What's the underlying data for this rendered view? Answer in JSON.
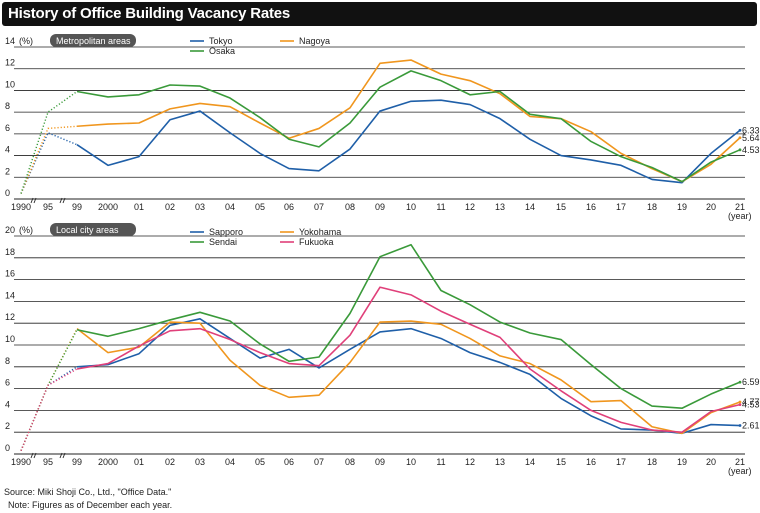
{
  "title": "History of Office Building Vacancy Rates",
  "source": "Source: Miki Shoji Co., Ltd., \"Office Data.\"",
  "note": "Note: Figures as of December each year.",
  "colors": {
    "Tokyo": "#1f5fa8",
    "Nagoya": "#f0961e",
    "Osaka": "#3a9a3a",
    "Sapporo": "#1f5fa8",
    "Yokohama": "#f0961e",
    "Sendai": "#3a9a3a",
    "Fukuoka": "#e0407a"
  },
  "chart_data": [
    {
      "type": "line",
      "panel_label": "Metropolitan areas",
      "unit_label": "(%)",
      "year_label": "(year)",
      "x_labels": [
        "1990",
        "95",
        "99",
        "2000",
        "01",
        "02",
        "03",
        "04",
        "05",
        "06",
        "07",
        "08",
        "09",
        "10",
        "11",
        "12",
        "13",
        "14",
        "15",
        "16",
        "17",
        "18",
        "19",
        "20",
        "21"
      ],
      "y_ticks": [
        0,
        2,
        4,
        6,
        8,
        10,
        12,
        14
      ],
      "ylim": [
        0,
        14
      ],
      "series": [
        {
          "name": "Tokyo",
          "values": [
            0.5,
            6.1,
            5.0,
            3.1,
            3.9,
            7.3,
            8.1,
            6.1,
            4.2,
            2.8,
            2.6,
            4.6,
            8.1,
            9.0,
            9.1,
            8.7,
            7.4,
            5.5,
            4.0,
            3.6,
            3.1,
            1.8,
            1.5,
            4.2,
            6.33
          ]
        },
        {
          "name": "Nagoya",
          "values": [
            0.5,
            6.5,
            6.7,
            6.9,
            7.0,
            8.3,
            8.8,
            8.5,
            7.0,
            5.6,
            6.5,
            8.4,
            12.5,
            12.8,
            11.5,
            10.9,
            9.7,
            7.6,
            7.4,
            6.2,
            4.2,
            2.8,
            1.6,
            3.2,
            5.64
          ]
        },
        {
          "name": "Osaka",
          "values": [
            0.5,
            8.0,
            9.9,
            9.4,
            9.6,
            10.5,
            10.4,
            9.3,
            7.5,
            5.5,
            4.8,
            7.0,
            10.3,
            11.8,
            10.9,
            9.6,
            9.9,
            7.8,
            7.4,
            5.3,
            3.9,
            2.9,
            1.6,
            3.4,
            4.53
          ]
        }
      ],
      "end_labels": [
        "6.33",
        "5.64",
        "4.53"
      ]
    },
    {
      "type": "line",
      "panel_label": "Local city areas",
      "unit_label": "(%)",
      "year_label": "(year)",
      "x_labels": [
        "1990",
        "95",
        "99",
        "2000",
        "01",
        "02",
        "03",
        "04",
        "05",
        "06",
        "07",
        "08",
        "09",
        "10",
        "11",
        "12",
        "13",
        "14",
        "15",
        "16",
        "17",
        "18",
        "19",
        "20",
        "21"
      ],
      "y_ticks": [
        0,
        2,
        4,
        6,
        8,
        10,
        12,
        14,
        16,
        18,
        20
      ],
      "ylim": [
        0,
        20
      ],
      "series": [
        {
          "name": "Sapporo",
          "values": [
            0.3,
            6.3,
            8.0,
            8.2,
            9.2,
            11.8,
            12.4,
            10.6,
            8.8,
            9.6,
            7.9,
            9.6,
            11.2,
            11.5,
            10.6,
            9.3,
            8.4,
            7.3,
            5.1,
            3.5,
            2.3,
            2.2,
            1.9,
            2.7,
            2.61
          ]
        },
        {
          "name": "Yokohama",
          "values": [
            0.3,
            6.3,
            11.5,
            9.3,
            9.8,
            12.1,
            12.0,
            8.6,
            6.3,
            5.2,
            5.4,
            8.4,
            12.1,
            12.2,
            11.9,
            10.6,
            9.0,
            8.3,
            6.8,
            4.8,
            4.9,
            2.5,
            1.9,
            3.8,
            4.77
          ]
        },
        {
          "name": "Sendai",
          "values": [
            0.3,
            6.3,
            11.4,
            10.8,
            11.5,
            12.3,
            13.0,
            12.2,
            10.1,
            8.5,
            8.9,
            12.9,
            18.1,
            19.2,
            15.0,
            13.7,
            12.1,
            11.1,
            10.5,
            8.2,
            6.0,
            4.4,
            4.2,
            5.5,
            6.59
          ]
        },
        {
          "name": "Fukuoka",
          "values": [
            0.3,
            6.3,
            7.8,
            8.3,
            9.9,
            11.3,
            11.5,
            10.5,
            9.3,
            8.3,
            8.1,
            10.9,
            15.3,
            14.6,
            13.1,
            11.9,
            10.7,
            7.8,
            5.8,
            4.0,
            2.9,
            2.2,
            2.0,
            3.9,
            4.53
          ]
        }
      ],
      "end_labels": [
        "6.59",
        "4.77",
        "4.53",
        "2.61"
      ]
    }
  ]
}
